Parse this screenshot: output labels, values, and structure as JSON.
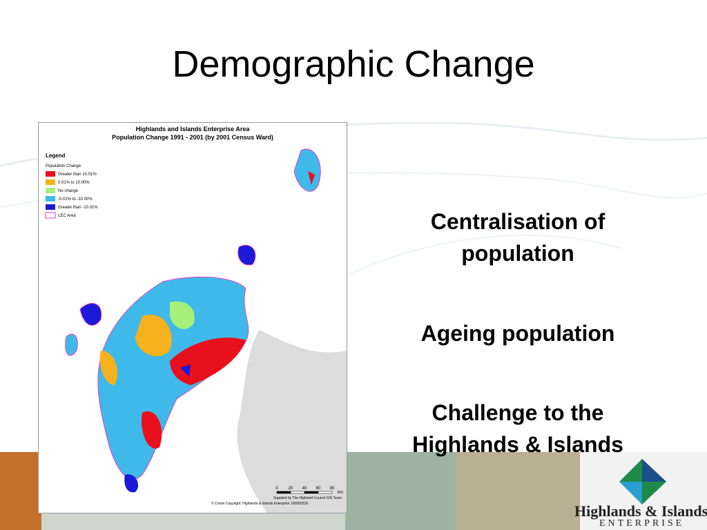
{
  "title": "Demographic Change",
  "map": {
    "title": [
      "Highlands and Islands Enterprise Area",
      "Population Change 1991 - 2001 (by 2001 Census Ward)"
    ],
    "legend": {
      "title": "Legend",
      "subtitle": "Population Change",
      "items": [
        {
          "label": "Greater than 10.01%",
          "color": "#e8101c"
        },
        {
          "label": "0.01% to 10.00%",
          "color": "#f5b21c"
        },
        {
          "label": "No change",
          "color": "#a6f07a"
        },
        {
          "label": "-0.01% to -10.00%",
          "color": "#3fb9ea"
        },
        {
          "label": "Greater than -10.01%",
          "color": "#1a1ad8"
        },
        {
          "label": "LEC Area",
          "color": "#e040c0"
        }
      ]
    },
    "scale": {
      "labels": [
        "0",
        "20",
        "40",
        "60",
        "80"
      ],
      "unit": "km"
    },
    "credits": [
      "Supplied by The Highland Council GIS Team",
      "© Crown Copyright.  Highlands & Islands Enterprise 100002539."
    ]
  },
  "bullets": [
    "Centralisation of population",
    "Ageing population",
    "Challenge to the Highlands & Islands"
  ],
  "logo": {
    "name": "Highlands & Islands",
    "tagline": "ENTERPRISE"
  }
}
